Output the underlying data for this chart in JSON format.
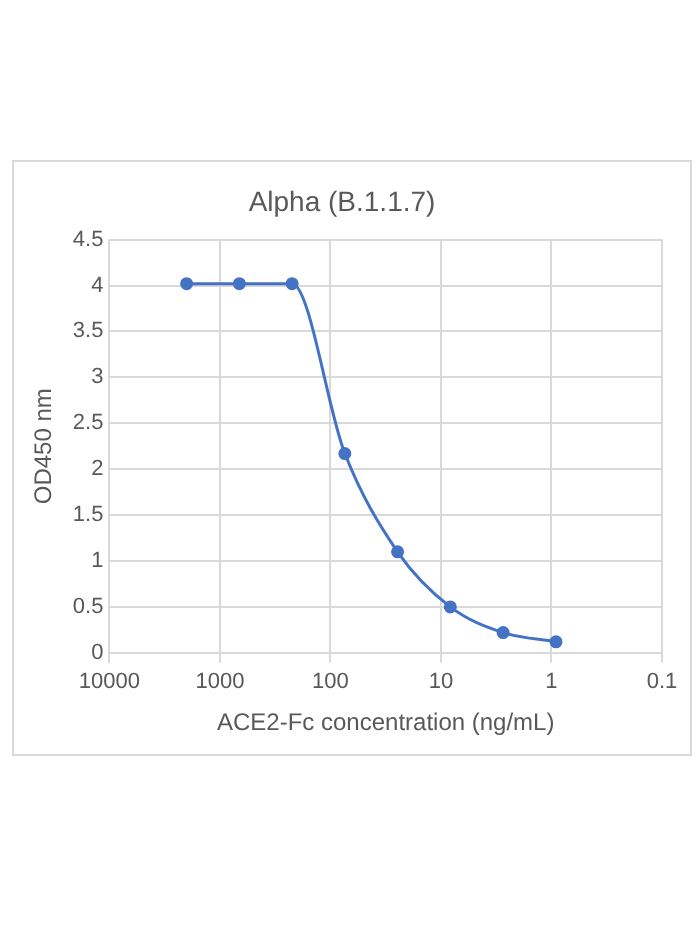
{
  "chart_data": {
    "type": "line",
    "title": "Alpha (B.1.1.7)",
    "xlabel": "ACE2-Fc concentration (ng/mL)",
    "ylabel": "OD450 nm",
    "x": [
      2000,
      666.7,
      222.2,
      74.07,
      24.69,
      8.23,
      2.74,
      0.91
    ],
    "series": [
      {
        "color": "#4472c4",
        "values": [
          4.02,
          4.02,
          4.02,
          2.17,
          1.1,
          0.5,
          0.22,
          0.12
        ]
      }
    ],
    "log": "x",
    "xlim": [
      10000,
      0.1
    ],
    "xticks": [
      10000,
      1000,
      100,
      10,
      1,
      0.1
    ],
    "ylim": [
      0,
      4.5
    ],
    "yticks": [
      0,
      0.5,
      1,
      1.5,
      2,
      2.5,
      3,
      3.5,
      4,
      4.5
    ],
    "grid": true,
    "legend": false,
    "marker": "circle",
    "line_style": "solid"
  }
}
